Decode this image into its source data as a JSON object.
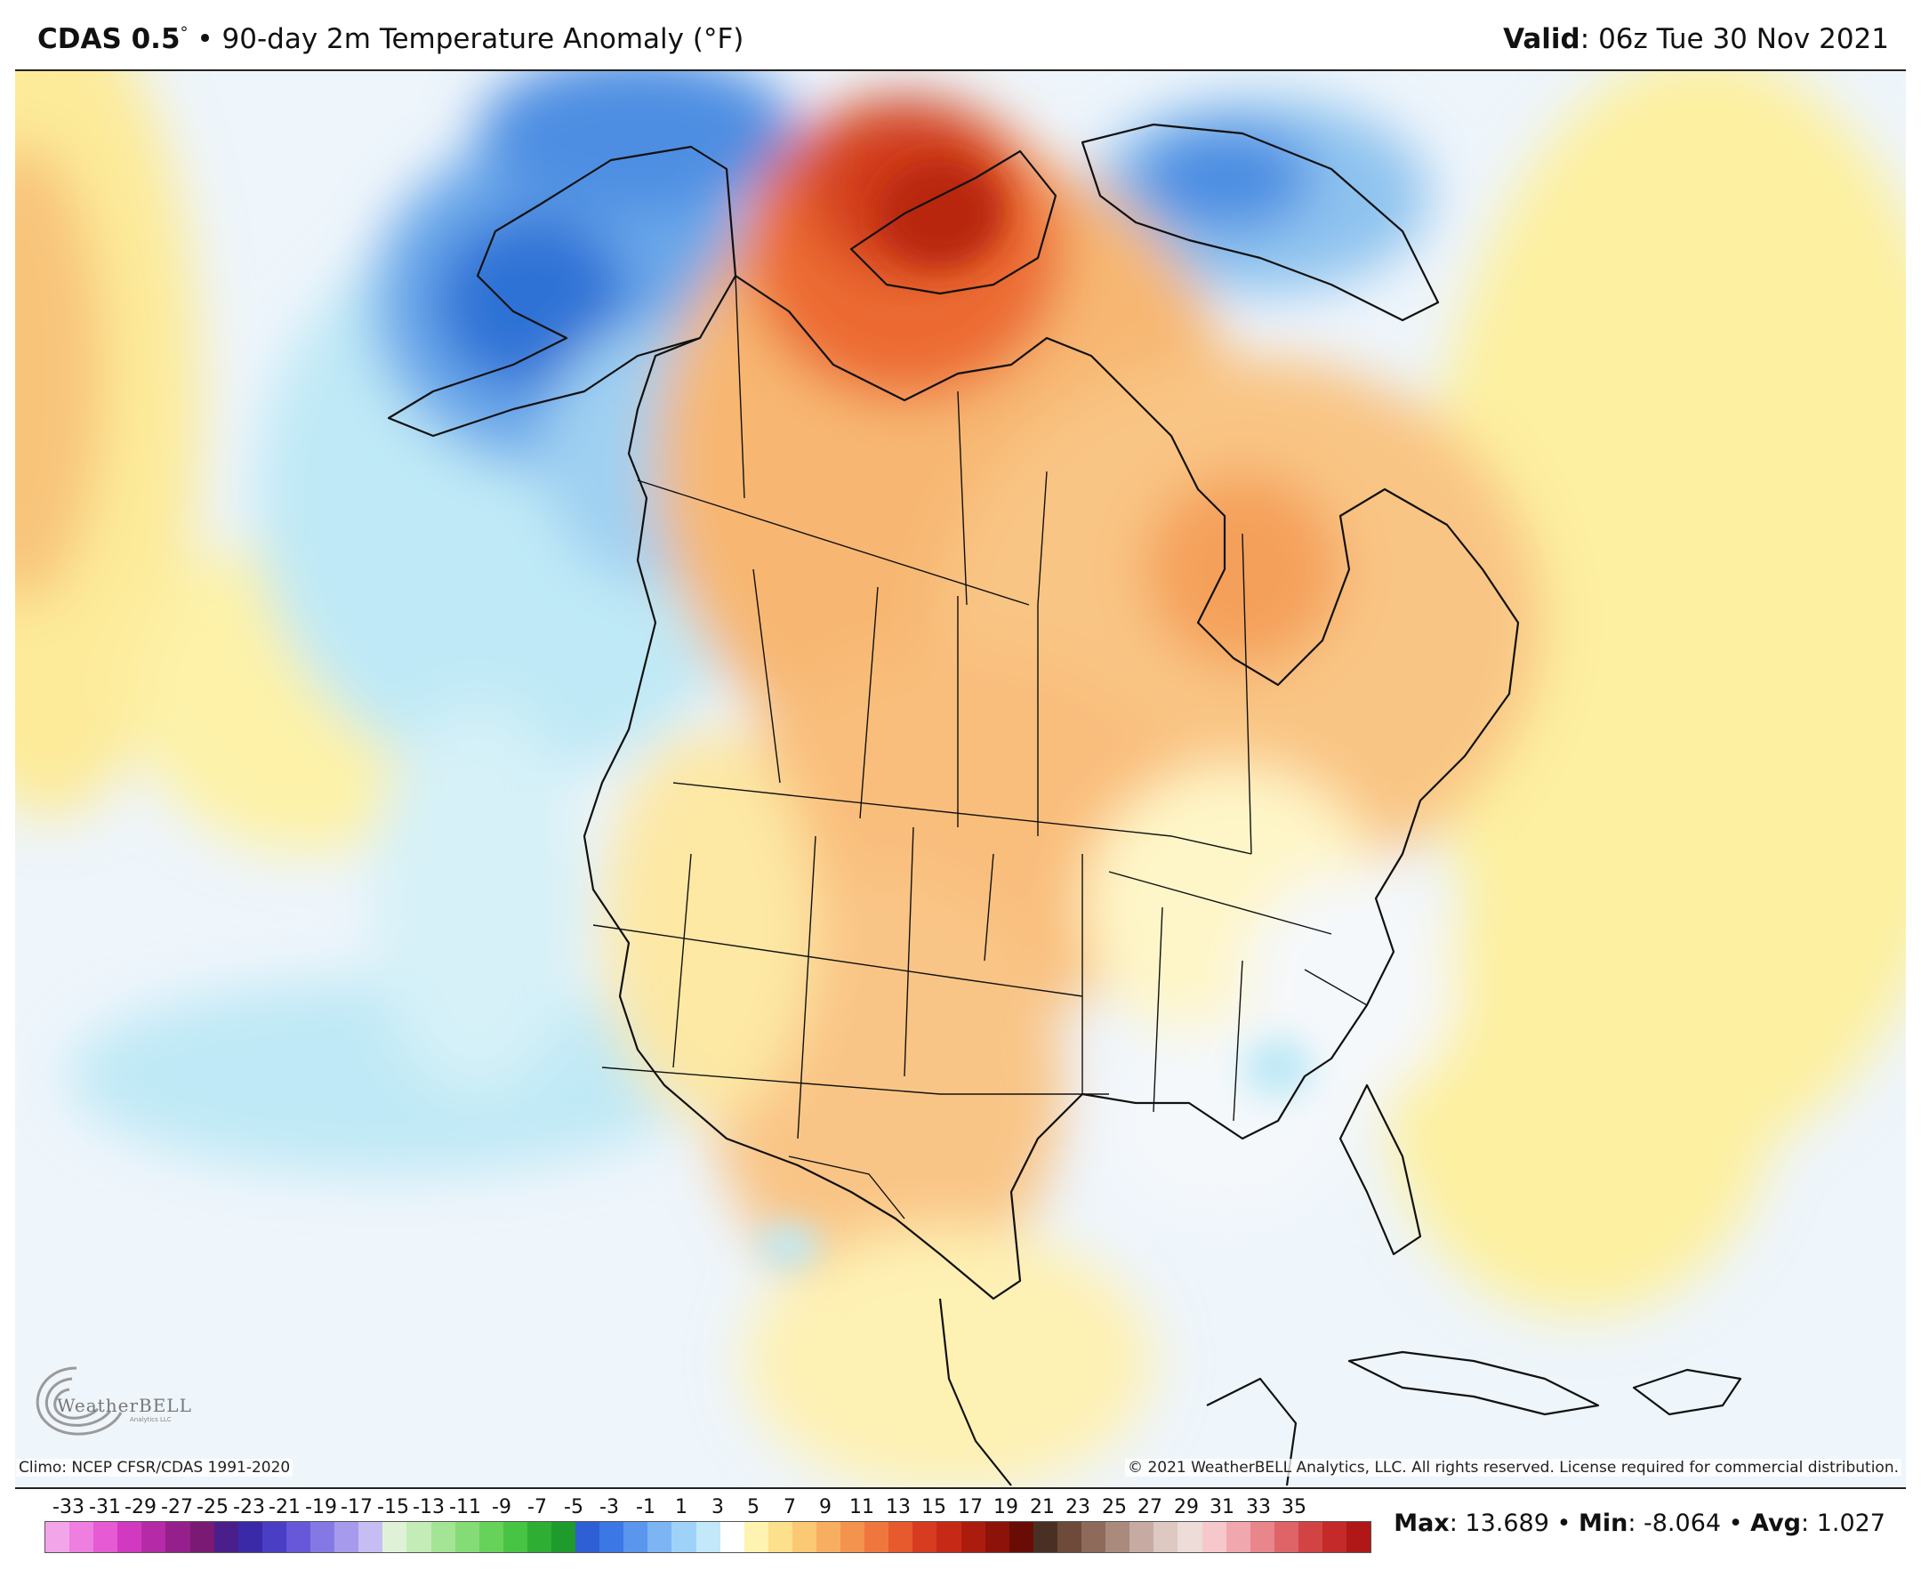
{
  "header": {
    "model": "CDAS 0.5",
    "deg": "°",
    "bullet": "•",
    "product": "90-day 2m Temperature Anomaly (°F)",
    "valid_label": "Valid",
    "valid_value": ": 06z Tue 30 Nov 2021"
  },
  "footer": {
    "climo": "Climo: NCEP CFSR/CDAS 1991-2020",
    "copyright": "© 2021 WeatherBELL Analytics, LLC. All rights reserved. License required for commercial distribution.",
    "logo_text": "WeatherBELL",
    "logo_sub": "Analytics LLC"
  },
  "stats": {
    "max_label": "Max",
    "max_value": ": 13.689",
    "min_label": "Min",
    "min_value": ": -8.064",
    "avg_label": "Avg",
    "avg_value": ": 1.027",
    "sep": " • "
  },
  "legend": {
    "ticks": [
      "-33",
      "-31",
      "-29",
      "-27",
      "-25",
      "-23",
      "-21",
      "-19",
      "-17",
      "-15",
      "-13",
      "-11",
      "-9",
      "-7",
      "-5",
      "-3",
      "-1",
      "1",
      "3",
      "5",
      "7",
      "9",
      "11",
      "13",
      "15",
      "17",
      "19",
      "21",
      "23",
      "25",
      "27",
      "29",
      "31",
      "33",
      "35"
    ],
    "colors": [
      "#f2a5e8",
      "#ee7fe0",
      "#e65bd4",
      "#d13ac0",
      "#b52aa6",
      "#95208c",
      "#7a1a74",
      "#4a1f8c",
      "#3a2aa8",
      "#4a3ec4",
      "#6658d8",
      "#8479e4",
      "#a69aec",
      "#c6bdf2",
      "#dff2d8",
      "#c3ecb6",
      "#a4e495",
      "#85dc76",
      "#66d25a",
      "#47c444",
      "#2fae34",
      "#1f9a2c",
      "#2f5fd4",
      "#3b78e6",
      "#5a95ee",
      "#7cb4f4",
      "#9ed2f8",
      "#c2e8fa",
      "#ffffff",
      "#fef3b0",
      "#fde08c",
      "#fbc873",
      "#f8ae60",
      "#f4934e",
      "#ef773e",
      "#e65a2e",
      "#d83c20",
      "#c62a16",
      "#ac1c0e",
      "#8c120a",
      "#6a0c06",
      "#4a3024",
      "#6d4a3a",
      "#8e6a5a",
      "#ab8a7e",
      "#c7aba2",
      "#ddc8c2",
      "#eedcd8",
      "#f6c8cc",
      "#f0a8ae",
      "#e8868c",
      "#de6468",
      "#d24444",
      "#c42a2a",
      "#b01818"
    ]
  },
  "map": {
    "title": "90-day 2m Temperature Anomaly",
    "ocean_color": "#eef5fb",
    "land_outline_color": "#111111"
  }
}
